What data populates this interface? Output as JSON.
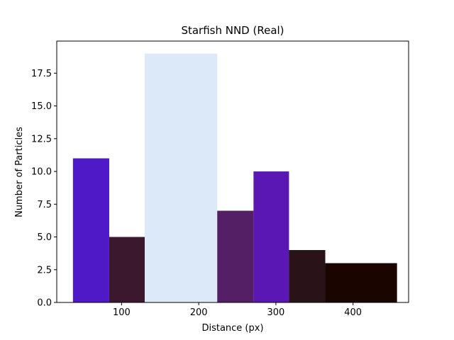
{
  "chart_data": {
    "type": "bar",
    "title": "Starfish NND (Real)",
    "xlabel": "Distance (px)",
    "ylabel": "Number of Particles",
    "xlim": [
      16,
      472
    ],
    "ylim": [
      0,
      19.95
    ],
    "xticks": [
      100,
      200,
      300,
      400
    ],
    "xtick_labels": [
      "100",
      "200",
      "300",
      "400"
    ],
    "yticks": [
      0,
      2.5,
      5,
      7.5,
      10,
      12.5,
      15,
      17.5
    ],
    "ytick_labels": [
      "0.0",
      "2.5",
      "5.0",
      "7.5",
      "10.0",
      "12.5",
      "15.0",
      "17.5"
    ],
    "grid": false,
    "bars": [
      {
        "x0": 37,
        "x1": 84,
        "value": 11,
        "color": "#5019c8"
      },
      {
        "x0": 84,
        "x1": 130,
        "value": 5,
        "color": "#3c182e"
      },
      {
        "x0": 130,
        "x1": 224,
        "value": 19,
        "color": "#dbe9f8"
      },
      {
        "x0": 224,
        "x1": 271,
        "value": 7,
        "color": "#541f65"
      },
      {
        "x0": 271,
        "x1": 317,
        "value": 10,
        "color": "#5a17b4"
      },
      {
        "x0": 317,
        "x1": 364,
        "value": 4,
        "color": "#2a1219"
      },
      {
        "x0": 364,
        "x1": 457,
        "value": 3,
        "color": "#1b0500"
      }
    ]
  }
}
